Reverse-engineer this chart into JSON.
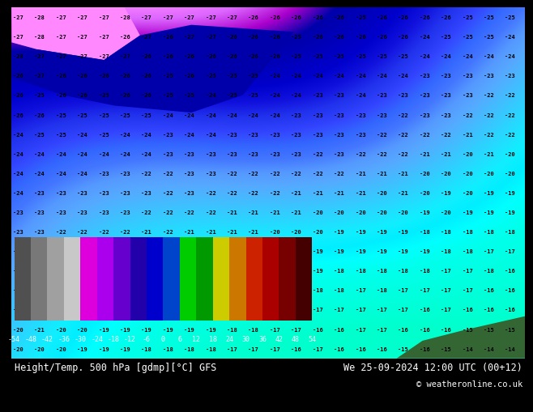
{
  "title_left": "Height/Temp. 500 hPa [gdmp][°C] GFS",
  "title_right": "We 25-09-2024 12:00 UTC (00+12)",
  "copyright": "© weatheronline.co.uk",
  "colorbar_ticks": [
    "-54",
    "-48",
    "-42",
    "-36",
    "-30",
    "-24",
    "-18",
    "-12",
    "-6",
    "0",
    "6",
    "12",
    "18",
    "24",
    "30",
    "36",
    "42",
    "48",
    "54"
  ],
  "colorbar_colors": [
    "#505050",
    "#787878",
    "#a0a0a0",
    "#c8c8c8",
    "#dd00dd",
    "#aa00ee",
    "#6600cc",
    "#2200aa",
    "#0000cc",
    "#0044cc",
    "#00cc00",
    "#009900",
    "#cccc00",
    "#cc7700",
    "#cc2200",
    "#aa0000",
    "#770000",
    "#440000"
  ],
  "bg_color": "#2200cc",
  "map_colors": {
    "pink": "#ff88ff",
    "dark_blue": "#1100aa",
    "medium_blue": "#3333dd",
    "blue": "#2200cc",
    "light_blue": "#4499ee",
    "sky_blue": "#55aaff",
    "cyan": "#00ccff",
    "light_cyan": "#44ddff",
    "teal_cyan": "#00eeff",
    "green": "#336633",
    "dark_green": "#225522"
  },
  "font_size_labels": 5,
  "font_size_title": 8.5,
  "font_size_copyright": 7.5,
  "font_size_ticks": 6
}
